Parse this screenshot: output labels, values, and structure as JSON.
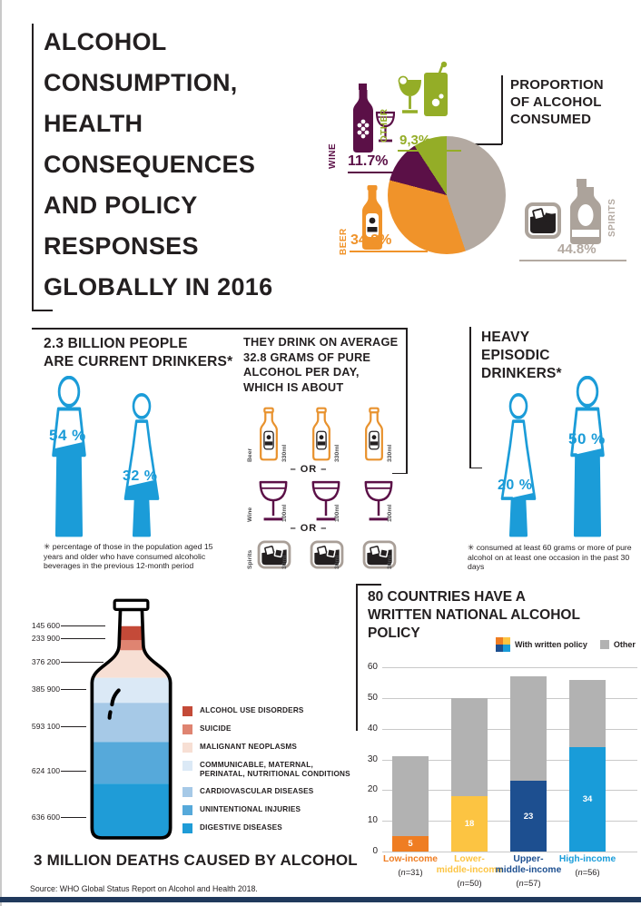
{
  "page": {
    "title_lines": [
      "ALCOHOL",
      "CONSUMPTION,",
      "HEALTH",
      "CONSEQUENCES",
      "AND POLICY",
      "RESPONSES",
      "GLOBALLY IN 2016"
    ],
    "source": "Source: WHO Global Status Report on Alcohol and Health 2018.",
    "accent_blue": "#1b9cd8",
    "ink": "#231f20"
  },
  "drinkers": {
    "heading_lines": [
      "2.3 BILLION PEOPLE",
      "ARE CURRENT DRINKERS*"
    ],
    "male_pct": "54 %",
    "female_pct": "32 %",
    "footnote": "✳ percentage of those in the population aged 15 years and older who have consumed alcoholic beverages in the previous 12-month period"
  },
  "consumption": {
    "heading": "THEY DRINK ON AVERAGE 32.8 GRAMS OF PURE ALCOHOL PER DAY, WHICH IS ABOUT",
    "or_label": "– OR –",
    "drinks": [
      {
        "name": "Beer",
        "serving": "330ml",
        "count": 3
      },
      {
        "name": "Wine",
        "serving": "100ml",
        "count": 3
      },
      {
        "name": "Spirits",
        "serving": "30ml",
        "count": 3
      }
    ]
  },
  "heavy": {
    "heading_lines": [
      "HEAVY",
      "EPISODIC",
      "DRINKERS*"
    ],
    "female_pct": "20 %",
    "male_pct": "50 %",
    "footnote": "✳ consumed at least 60 grams or more of pure alcohol on at least one occasion in the past 30 days"
  },
  "chart_data": [
    {
      "type": "pie",
      "title": "PROPORTION OF ALCOHOL CONSUMED",
      "order_clockwise_from_top": [
        "SPIRITS",
        "BEER",
        "WINE",
        "OTHER"
      ],
      "series": [
        {
          "label": "SPIRITS",
          "value": 44.8,
          "display": "44.8%",
          "color": "#b3a9a1"
        },
        {
          "label": "BEER",
          "value": 34.3,
          "display": "34,3%",
          "color": "#f0932a"
        },
        {
          "label": "WINE",
          "value": 11.7,
          "display": "11.7%",
          "color": "#5b1047"
        },
        {
          "label": "OTHER",
          "value": 9.3,
          "display": "9,3%",
          "color": "#94ad27"
        }
      ]
    },
    {
      "type": "bar",
      "stacked": true,
      "title": "80 COUNTRIES HAVE A WRITTEN NATIONAL ALCOHOL POLICY",
      "ylim": [
        0,
        60
      ],
      "yticks": [
        0,
        10,
        20,
        30,
        40,
        50,
        60
      ],
      "legend": [
        {
          "label": "With written policy",
          "colors": [
            "#ef7d22",
            "#fcc442",
            "#1d4f90",
            "#199cd9"
          ]
        },
        {
          "label": "Other",
          "color": "#b2b2b2"
        }
      ],
      "categories": [
        {
          "name_lines": [
            "Low-income"
          ],
          "n_label": "(n=31)",
          "color": "#ef7d22",
          "written": 5,
          "total": 31
        },
        {
          "name_lines": [
            "Lower-",
            "middle-income"
          ],
          "n_label": "(n=50)",
          "color": "#fcc442",
          "written": 18,
          "total": 50
        },
        {
          "name_lines": [
            "Upper-",
            "middle-income"
          ],
          "n_label": "(n=57)",
          "color": "#1d4f90",
          "written": 23,
          "total": 57
        },
        {
          "name_lines": [
            "High-income"
          ],
          "n_label": "(n=56)",
          "color": "#199cd9",
          "written": 34,
          "total": 56
        }
      ]
    },
    {
      "type": "bar",
      "orientation": "bottle-pictogram",
      "title": "3 MILLION DEATHS CAUSED BY ALCOHOL",
      "items": [
        {
          "label": "ALCOHOL USE DISORDERS",
          "value": 145600,
          "display": "145 600",
          "color": "#c44a38"
        },
        {
          "label": "SUICIDE",
          "value": 233900,
          "display": "233 900",
          "color": "#df8471"
        },
        {
          "label": "MALIGNANT NEOPLASMS",
          "value": 376200,
          "display": "376 200",
          "color": "#f7dfd4"
        },
        {
          "label": "COMMUNICABLE, MATERNAL, PERINATAL, NUTRITIONAL CONDITIONS",
          "value": 385900,
          "display": "385 900",
          "color": "#dbe9f6"
        },
        {
          "label": "CARDIOVASCULAR DISEASES",
          "value": 593100,
          "display": "593 100",
          "color": "#a6c9e7"
        },
        {
          "label": "UNINTENTIONAL INJURIES",
          "value": 624100,
          "display": "624 100",
          "color": "#56a9da"
        },
        {
          "label": "DIGESTIVE DISEASES",
          "value": 636600,
          "display": "636 600",
          "color": "#1f9cd7"
        }
      ]
    }
  ]
}
